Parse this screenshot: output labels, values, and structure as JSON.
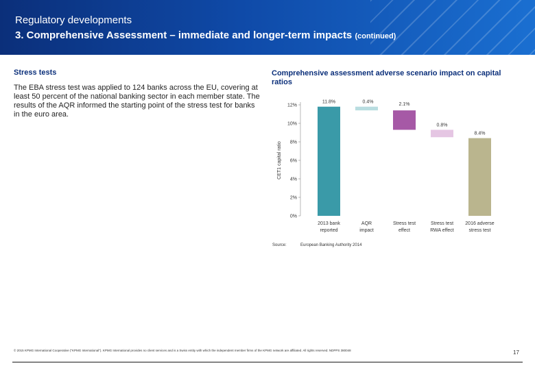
{
  "header": {
    "section": "Regulatory developments",
    "title": "3. Comprehensive Assessment – immediate and longer-term impacts",
    "continued": "(continued)"
  },
  "left": {
    "heading": "Stress tests",
    "text": "The EBA stress test was applied to 124 banks across the EU, covering at least 50 percent of the national banking sector in each member state. The results of the AQR informed the starting point of the stress test for banks in the euro area."
  },
  "right": {
    "heading": "Comprehensive assessment adverse scenario impact on capital ratios"
  },
  "chart_data": {
    "type": "bar",
    "subtype": "waterfall",
    "title": "Comprehensive assessment adverse scenario impact on capital ratios",
    "ylabel": "CET1 capital ratio",
    "ylim": [
      0,
      12
    ],
    "yticks": [
      "0%",
      "2%",
      "4%",
      "6%",
      "8%",
      "10%",
      "12%"
    ],
    "categories": [
      "2013 bank reported",
      "AQR impact",
      "Stress test effect",
      "Stress test RWA effect",
      "2016 adverse stress test"
    ],
    "category_lines": [
      [
        "2013 bank",
        "reported"
      ],
      [
        "AQR",
        "impact"
      ],
      [
        "Stress test",
        "effect"
      ],
      [
        "Stress test",
        "RWA effect"
      ],
      [
        "2016 adverse",
        "stress test"
      ]
    ],
    "labels": [
      "11.8%",
      "0.4%",
      "2.1%",
      "0.8%",
      "8.4%"
    ],
    "bars": [
      {
        "start": 0,
        "end": 11.8,
        "color": "#3a9aa8"
      },
      {
        "start": 11.4,
        "end": 11.8,
        "color": "#b9dde0"
      },
      {
        "start": 9.3,
        "end": 11.4,
        "color": "#a659a6"
      },
      {
        "start": 8.5,
        "end": 9.3,
        "color": "#e5c6e3"
      },
      {
        "start": 0,
        "end": 8.4,
        "color": "#bab58e"
      }
    ],
    "grid": false,
    "legend": "none"
  },
  "source": {
    "label": "Source:",
    "text": "European Banking Authority 2014"
  },
  "footer": {
    "copyright": "© 2015 KPMG International Cooperative (\"KPMG International\"). KPMG International provides no client services and is a Swiss entity with which the independent member firms of the KPMG network are affiliated. All rights reserved. NDPPS 380048",
    "page": "17"
  }
}
